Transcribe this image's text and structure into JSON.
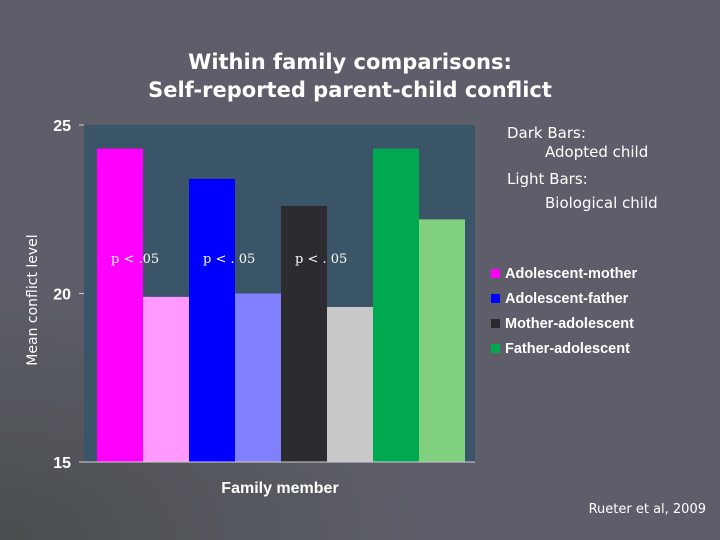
{
  "slide": {
    "title_line1": "Within family comparisons:",
    "title_line2": "Self-reported parent-child conflict",
    "note_dark_label": "Dark Bars:",
    "note_dark_value": "Adopted child",
    "note_light_label": "Light Bars:",
    "note_light_value": "Biological child",
    "credit": "Rueter et al, 2009"
  },
  "colors": {
    "plot_background": "#3b5568",
    "background": "#5d5e69"
  },
  "chart_data": {
    "type": "bar",
    "title": "",
    "xlabel": "Family member",
    "ylabel": "Mean conflict level",
    "ylim": [
      15,
      25
    ],
    "yticks": [
      15,
      20,
      25
    ],
    "grid": false,
    "legend": "right",
    "series": [
      {
        "name": "Adolescent-mother",
        "dark_color": "#ff00ff",
        "light_color": "#ff99ff",
        "values": {
          "adopted": 24.3,
          "biological": 19.9
        },
        "annotation": "p < .05"
      },
      {
        "name": "Adolescent-father",
        "dark_color": "#0000ff",
        "light_color": "#8080ff",
        "values": {
          "adopted": 23.4,
          "biological": 20.0
        },
        "annotation": "p < . 05"
      },
      {
        "name": "Mother-adolescent",
        "dark_color": "#2b2b30",
        "light_color": "#c8c8c8",
        "values": {
          "adopted": 22.6,
          "biological": 19.6
        },
        "annotation": "p < . 05"
      },
      {
        "name": "Father-adolescent",
        "dark_color": "#00a84f",
        "light_color": "#80d080",
        "values": {
          "adopted": 24.3,
          "biological": 22.2
        },
        "annotation": ""
      }
    ]
  }
}
